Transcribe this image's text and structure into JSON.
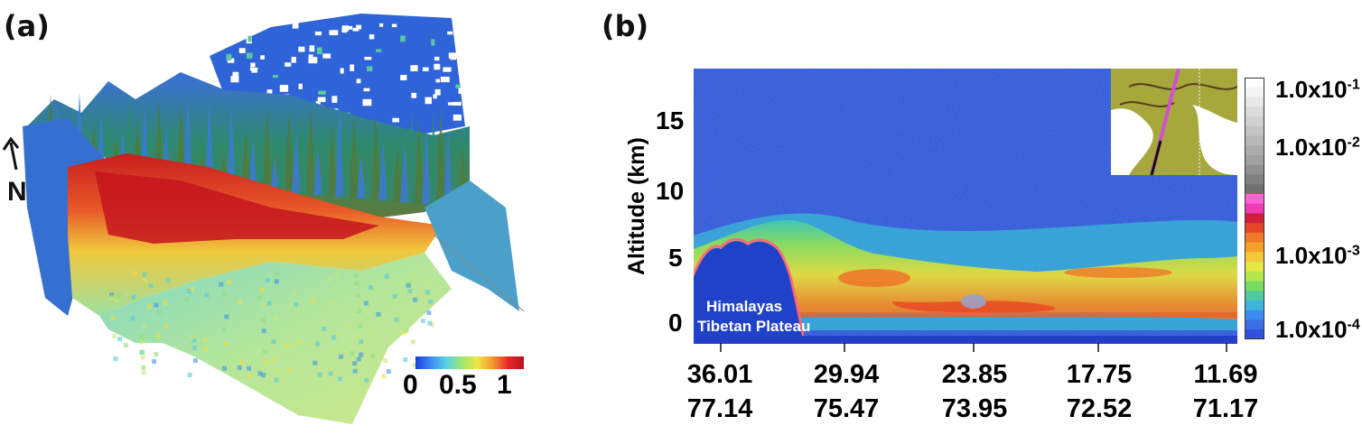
{
  "panels": {
    "a": {
      "label": "(a)",
      "north_label": "N",
      "colorbar": {
        "ticks": [
          "0",
          "0.5",
          "1"
        ],
        "min": 0,
        "max": 1.1,
        "colors": [
          "#1e3cdc",
          "#3c8cf0",
          "#5ad2e6",
          "#9ee66e",
          "#f0e646",
          "#f5962d",
          "#e62828",
          "#b4141e"
        ]
      }
    },
    "b": {
      "label": "(b)",
      "inset_label": "Himalayas\nTibetan Plateau",
      "inset_line1": "Himalayas",
      "inset_line2": "Tibetan Plateau",
      "colorbar": {
        "ticks": [
          "1.0x10-1",
          "1.0x10-2",
          "1.0x10-3",
          "1.0x10-4"
        ],
        "tick_base": "1.0x10",
        "tick_exp": [
          "-1",
          "-2",
          "-3",
          "-4"
        ],
        "scale": "log"
      }
    }
  },
  "chart_data": [
    {
      "type": "heatmap",
      "title": "",
      "description_scale_ticks": [
        0,
        0.5,
        1
      ]
    },
    {
      "type": "heatmap",
      "title": "",
      "xlabel": "",
      "ylabel": "Altitude (km)",
      "ylim": [
        -1.5,
        19
      ],
      "yticks": [
        0,
        5,
        10,
        15
      ],
      "x_ticks": [
        {
          "lat": "36.01",
          "lon": "77.14"
        },
        {
          "lat": "29.94",
          "lon": "75.47"
        },
        {
          "lat": "23.85",
          "lon": "73.95"
        },
        {
          "lat": "17.75",
          "lon": "72.52"
        },
        {
          "lat": "11.69",
          "lon": "71.17"
        }
      ],
      "colorbar_ticks": [
        "1.0x10-1",
        "1.0x10-2",
        "1.0x10-3",
        "1.0x10-4"
      ],
      "annotations": [
        "Himalayas",
        "Tibetan Plateau"
      ]
    }
  ]
}
